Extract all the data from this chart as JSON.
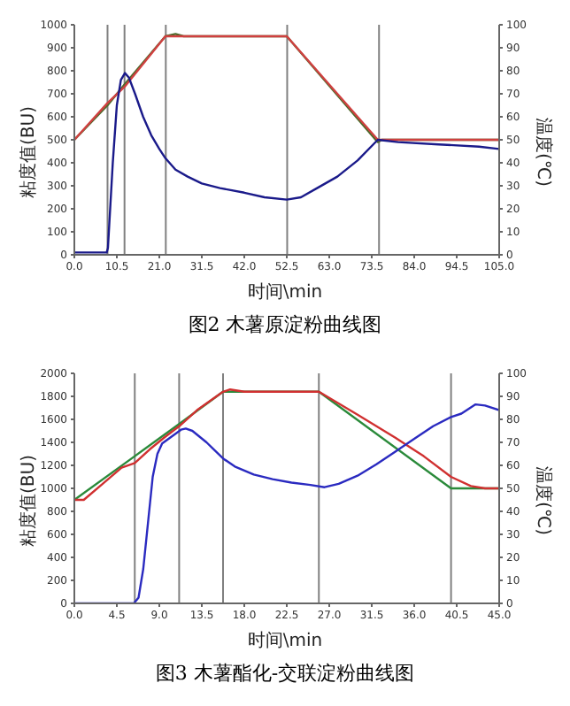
{
  "chart_data": [
    {
      "type": "line",
      "xlabel": "时间\\min",
      "ylabel": "粘度值(BU)",
      "y2label": "温度(℃)",
      "annotations": [
        "图2 木薯原淀粉曲线图"
      ],
      "xlim": [
        0,
        105
      ],
      "xticks": [
        {
          "value": 0,
          "label": "0.0"
        },
        10.5,
        {
          "value": 21,
          "label": "21.0"
        },
        31.5,
        {
          "value": 42,
          "label": "42.0"
        },
        52.5,
        {
          "value": 63,
          "label": "63.0"
        },
        73.5,
        {
          "value": 84,
          "label": "84.0"
        },
        94.5,
        {
          "value": 105,
          "label": "105.0"
        }
      ],
      "ylim": [
        0,
        1000
      ],
      "yticks": [
        0,
        100,
        200,
        300,
        400,
        500,
        600,
        700,
        800,
        900,
        1000
      ],
      "y2lim": [
        0,
        100
      ],
      "y2ticks": [
        0,
        10,
        20,
        30,
        40,
        50,
        60,
        70,
        80,
        90,
        100
      ],
      "grid": false,
      "marker": "none",
      "line_style": "solid",
      "ref_lines": [
        {
          "axis": "x",
          "value": 8.2,
          "color": "#808080"
        },
        {
          "axis": "x",
          "value": 12.4,
          "color": "#808080"
        },
        {
          "axis": "x",
          "value": 22.6,
          "color": "#808080"
        },
        {
          "axis": "x",
          "value": 52.6,
          "color": "#808080"
        },
        {
          "axis": "x",
          "value": 75.3,
          "color": "#808080"
        }
      ],
      "series": [
        {
          "color": "#4a6a2a",
          "axis": "y2",
          "x": [
            0,
            8.2,
            12.4,
            22.5,
            25,
            27,
            52.5,
            75,
            76,
            105
          ],
          "values": [
            50,
            65,
            74,
            95,
            96,
            95,
            95,
            49,
            50,
            50
          ]
        },
        {
          "color": "#d04040",
          "axis": "y2",
          "x": [
            0,
            8.2,
            12.4,
            22.5,
            52.5,
            75,
            105
          ],
          "values": [
            50,
            66,
            73,
            95,
            95,
            50,
            50
          ]
        },
        {
          "color": "#1a1a8a",
          "x": [
            0,
            8,
            8.3,
            9.5,
            10.5,
            11.5,
            12.5,
            13.5,
            15,
            17,
            19,
            21,
            22.5,
            25,
            28,
            31.5,
            36,
            42,
            47,
            52.5,
            56,
            60,
            65,
            70,
            75,
            80,
            90,
            100,
            105
          ],
          "values": [
            10,
            10,
            30,
            400,
            650,
            760,
            790,
            770,
            700,
            600,
            520,
            460,
            420,
            370,
            340,
            310,
            290,
            270,
            250,
            240,
            250,
            290,
            340,
            410,
            500,
            490,
            480,
            470,
            460
          ]
        }
      ]
    },
    {
      "type": "line",
      "xlabel": "时间\\min",
      "ylabel": "粘度值(BU)",
      "y2label": "温度(℃)",
      "annotations": [
        "图3 木薯酯化-交联淀粉曲线图"
      ],
      "xlim": [
        0,
        45
      ],
      "xticks": [
        {
          "value": 0,
          "label": "0.0"
        },
        4.5,
        {
          "value": 9,
          "label": "9.0"
        },
        13.5,
        {
          "value": 18,
          "label": "18.0"
        },
        22.5,
        {
          "value": 27,
          "label": "27.0"
        },
        31.5,
        {
          "value": 36,
          "label": "36.0"
        },
        40.5,
        {
          "value": 45,
          "label": "45.0"
        }
      ],
      "ylim": [
        0,
        2000
      ],
      "yticks": [
        0,
        200,
        400,
        600,
        800,
        1000,
        1200,
        1400,
        1600,
        1800,
        2000
      ],
      "y2lim": [
        0,
        100
      ],
      "y2ticks": [
        0,
        10,
        20,
        30,
        40,
        50,
        60,
        70,
        80,
        90,
        100
      ],
      "grid": false,
      "marker": "none",
      "line_style": "solid",
      "ref_lines": [
        {
          "axis": "x",
          "value": 6.4,
          "color": "#808080"
        },
        {
          "axis": "x",
          "value": 11.1,
          "color": "#808080"
        },
        {
          "axis": "x",
          "value": 15.75,
          "color": "#808080"
        },
        {
          "axis": "x",
          "value": 25.9,
          "color": "#808080"
        },
        {
          "axis": "x",
          "value": 39.9,
          "color": "#808080"
        }
      ],
      "series": [
        {
          "color": "#2a8a3a",
          "axis": "y2",
          "x": [
            0,
            6.4,
            11.1,
            15.75,
            25.9,
            39.9,
            45
          ],
          "values": [
            45,
            64,
            78,
            92,
            92,
            50,
            50
          ]
        },
        {
          "color": "#d03030",
          "axis": "y2",
          "x": [
            0,
            1,
            3,
            5,
            6.4,
            8,
            9.5,
            11.1,
            13,
            15.75,
            16.5,
            18,
            25.9,
            30,
            34,
            37,
            39.9,
            42,
            43.5,
            45
          ],
          "values": [
            45,
            45,
            52,
            59,
            61,
            67,
            72,
            77,
            84,
            92,
            93,
            92,
            92,
            82,
            72,
            64,
            55,
            51,
            50,
            50
          ]
        },
        {
          "color": "#2a2ac0",
          "x": [
            0,
            6.3,
            6.8,
            7.3,
            7.8,
            8.3,
            8.8,
            9.3,
            10.3,
            11.3,
            11.8,
            12.5,
            14,
            15.75,
            17,
            19,
            21,
            23,
            25,
            26.5,
            28,
            30,
            32,
            34,
            36,
            38,
            39.9,
            41,
            42.5,
            43.5,
            45
          ],
          "values": [
            0,
            0,
            50,
            300,
            700,
            1100,
            1300,
            1390,
            1450,
            1510,
            1520,
            1500,
            1400,
            1260,
            1190,
            1120,
            1080,
            1050,
            1030,
            1010,
            1040,
            1110,
            1210,
            1320,
            1430,
            1540,
            1620,
            1650,
            1730,
            1720,
            1680
          ]
        }
      ]
    }
  ]
}
